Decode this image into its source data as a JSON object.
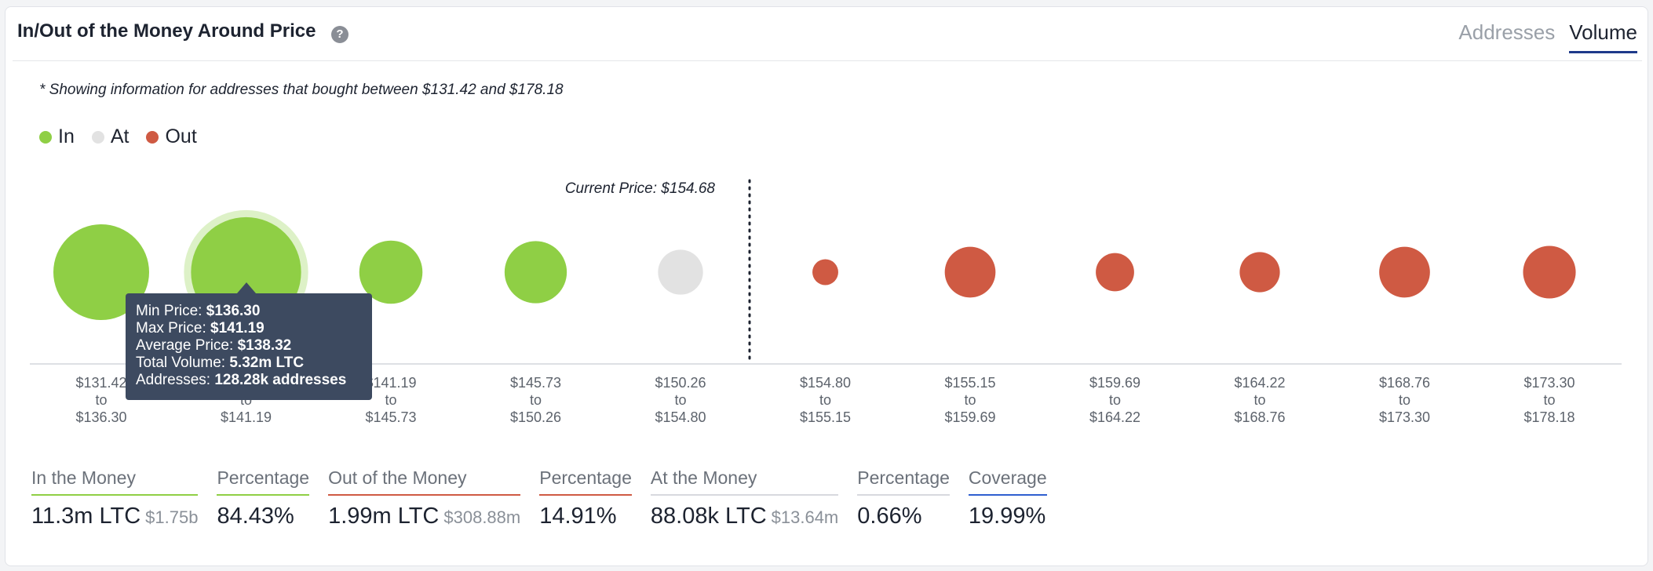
{
  "header": {
    "title": "In/Out of the Money Around Price",
    "help_glyph": "?",
    "tabs": [
      {
        "label": "Addresses",
        "active": false
      },
      {
        "label": "Volume",
        "active": true
      }
    ]
  },
  "note": "* Showing information for addresses that bought between $131.42 and $178.18",
  "legend": [
    {
      "label": "In",
      "color": "#8fcf45"
    },
    {
      "label": "At",
      "color": "#e2e2e2"
    },
    {
      "label": "Out",
      "color": "#cf5a43"
    }
  ],
  "chart_data": {
    "type": "scatter",
    "current_price_label": "Current Price: $154.68",
    "current_price": 154.68,
    "categories": [
      {
        "from": "$131.42",
        "to": "$136.30",
        "status": "in"
      },
      {
        "from": "$136.30",
        "to": "$141.19",
        "status": "in"
      },
      {
        "from": "$141.19",
        "to": "$145.73",
        "status": "in"
      },
      {
        "from": "$145.73",
        "to": "$150.26",
        "status": "in"
      },
      {
        "from": "$150.26",
        "to": "$154.80",
        "status": "at"
      },
      {
        "from": "$154.80",
        "to": "$155.15",
        "status": "out"
      },
      {
        "from": "$155.15",
        "to": "$159.69",
        "status": "out"
      },
      {
        "from": "$159.69",
        "to": "$164.22",
        "status": "out"
      },
      {
        "from": "$164.22",
        "to": "$168.76",
        "status": "out"
      },
      {
        "from": "$168.76",
        "to": "$173.30",
        "status": "out"
      },
      {
        "from": "$173.30",
        "to": "$178.18",
        "status": "out"
      }
    ],
    "connector": "to",
    "relative_size": [
      1.0,
      1.15,
      0.66,
      0.65,
      0.47,
      0.27,
      0.53,
      0.4,
      0.42,
      0.53,
      0.55
    ],
    "colors": {
      "in": "#8fcf45",
      "at": "#e2e2e2",
      "out": "#cf5a43"
    },
    "highlighted_index": 1
  },
  "tooltip": {
    "min_price_label": "Min Price:",
    "min_price": "$136.30",
    "max_price_label": "Max Price:",
    "max_price": "$141.19",
    "avg_price_label": "Average Price:",
    "avg_price": "$138.32",
    "volume_label": "Total Volume:",
    "volume": "5.32m LTC",
    "addresses_label": "Addresses:",
    "addresses": "128.28k addresses"
  },
  "stats": [
    {
      "label": "In the Money",
      "value": "11.3m LTC",
      "sub": "$1.75b",
      "underline": "#8fcf45"
    },
    {
      "label": "Percentage",
      "value": "84.43%",
      "sub": "",
      "underline": "#8fcf45"
    },
    {
      "label": "Out of the Money",
      "value": "1.99m LTC",
      "sub": "$308.88m",
      "underline": "#cf5a43"
    },
    {
      "label": "Percentage",
      "value": "14.91%",
      "sub": "",
      "underline": "#cf5a43"
    },
    {
      "label": "At the Money",
      "value": "88.08k LTC",
      "sub": "$13.64m",
      "underline": "#d7d9de"
    },
    {
      "label": "Percentage",
      "value": "0.66%",
      "sub": "",
      "underline": "#d7d9de"
    },
    {
      "label": "Coverage",
      "value": "19.99%",
      "sub": "",
      "underline": "#2f5fd0"
    }
  ]
}
